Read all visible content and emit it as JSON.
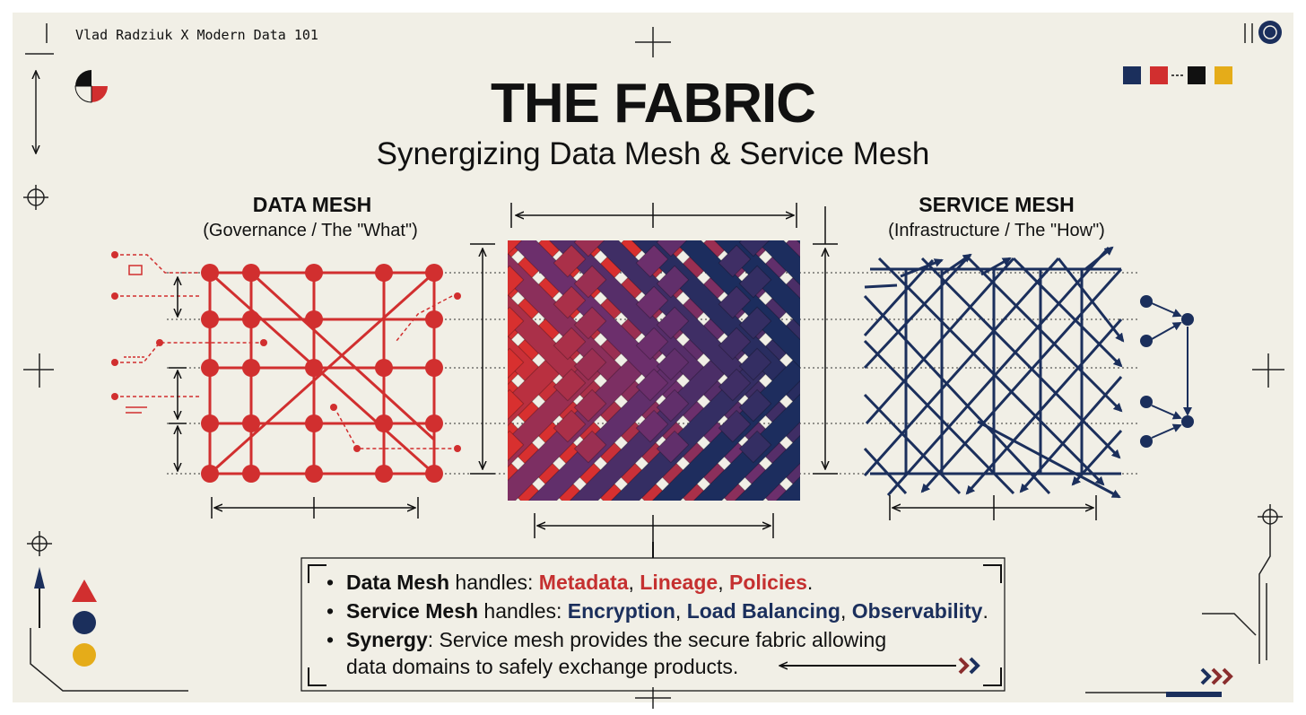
{
  "author": "Vlad Radziuk X Modern Data 101",
  "title": "THE FABRIC",
  "subtitle": "Synergizing Data Mesh & Service Mesh",
  "data_mesh": {
    "title": "DATA MESH",
    "subtitle": "(Governance / The \"What\")"
  },
  "service_mesh": {
    "title": "SERVICE MESH",
    "subtitle": "(Infrastructure / The \"How\")"
  },
  "bullets": {
    "b1": {
      "lead": "Data Mesh",
      "mid": " handles: ",
      "items": [
        "Metadata",
        "Lineage",
        "Policies"
      ]
    },
    "b2": {
      "lead": "Service Mesh",
      "mid": " handles: ",
      "items": [
        "Encryption",
        "Load Balancing",
        "Observability"
      ]
    },
    "b3": {
      "lead": "Synergy",
      "line1": ": Service mesh provides the secure fabric allowing",
      "line2": "data domains to safely exchange products."
    }
  },
  "separators": {
    "comma": ", ",
    "period": "."
  },
  "colors": {
    "red": "#d12f2f",
    "navy": "#1b2f5c",
    "black": "#111111",
    "yellow": "#e5ac19",
    "purple": "#6a2f6c",
    "background": "#f1efe6"
  }
}
